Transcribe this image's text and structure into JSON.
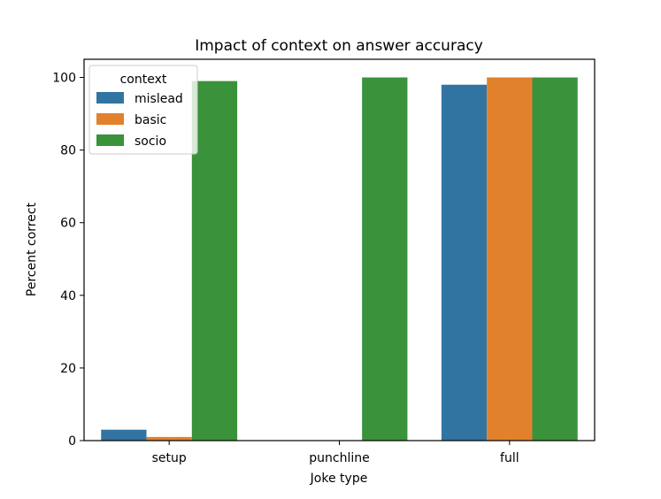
{
  "chart_data": {
    "type": "bar",
    "title": "Impact of context on answer accuracy",
    "xlabel": "Joke type",
    "ylabel": "Percent correct",
    "categories": [
      "setup",
      "punchline",
      "full"
    ],
    "ylim": [
      0,
      105
    ],
    "yticks": [
      0,
      20,
      40,
      60,
      80,
      100
    ],
    "grid": false,
    "legend": {
      "title": "context",
      "placement": "top-left"
    },
    "series": [
      {
        "name": "mislead",
        "color": "#3274a1",
        "values": [
          3,
          0,
          98
        ]
      },
      {
        "name": "basic",
        "color": "#e1812c",
        "values": [
          1,
          0,
          100
        ]
      },
      {
        "name": "socio",
        "color": "#3a923a",
        "values": [
          99,
          100,
          100
        ]
      }
    ]
  }
}
